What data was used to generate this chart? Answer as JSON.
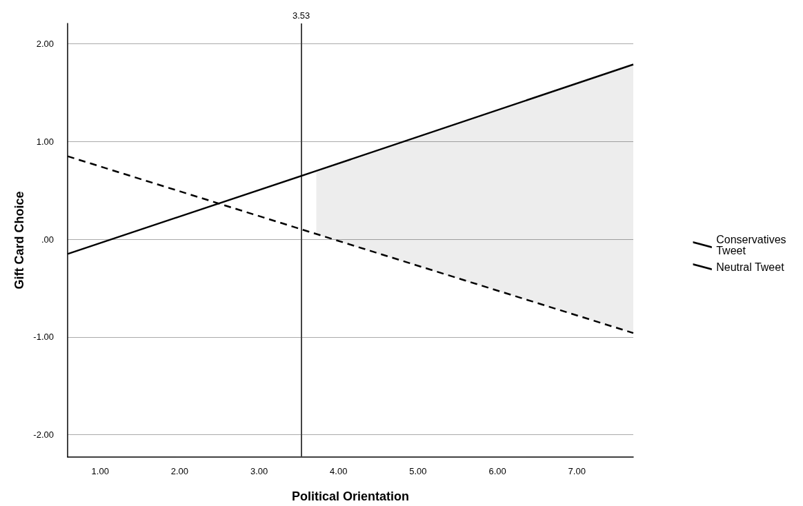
{
  "chart_data": {
    "type": "line",
    "xlabel": "Political Orientation",
    "ylabel": "Gift Card Choice",
    "x": [
      0.59,
      7.71
    ],
    "series": [
      {
        "name": "Conservatives Tweet",
        "color": "#000000",
        "x": [
          0.59,
          3.72,
          7.71
        ],
        "values": [
          -0.15,
          0.7,
          1.79
        ],
        "lower": [
          null,
          0.05,
          -0.96
        ],
        "upper": [
          null,
          0.7,
          1.79
        ],
        "line_style": "solid"
      },
      {
        "name": "Neutral Tweet",
        "color": "#000000",
        "values": [
          0.85,
          -0.96
        ],
        "line_style": "dashed"
      }
    ],
    "xlim": [
      0.59,
      7.71
    ],
    "xticks": [
      {
        "value": 1,
        "label": "1.00"
      },
      {
        "value": 2,
        "label": "2.00"
      },
      {
        "value": 3,
        "label": "3.00"
      },
      {
        "value": 4,
        "label": "4.00"
      },
      {
        "value": 5,
        "label": "5.00"
      },
      {
        "value": 6,
        "label": "6.00"
      },
      {
        "value": 7,
        "label": "7.00"
      }
    ],
    "ylim": [
      -2.23,
      2.21
    ],
    "yticks": [
      {
        "value": -2,
        "label": "-2.00"
      },
      {
        "value": -1,
        "label": "-1.00"
      },
      {
        "value": 0,
        "label": ".00"
      },
      {
        "value": 1,
        "label": "1.00"
      },
      {
        "value": 2,
        "label": "2.00"
      }
    ],
    "ref_lines": [
      {
        "axis": "x",
        "value": 3.53,
        "label": "3.53",
        "color": "#444444"
      }
    ],
    "grid": "y",
    "legend": "right",
    "marker": "none"
  }
}
